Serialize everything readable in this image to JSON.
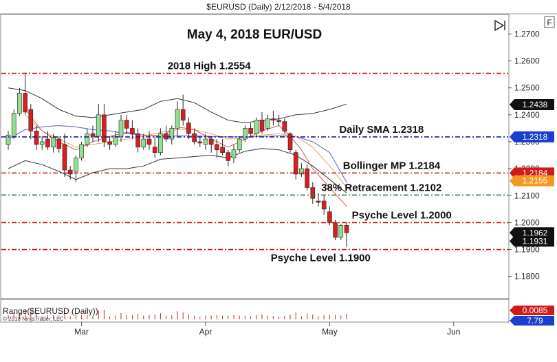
{
  "window": {
    "title": "$EURUSD (Daily)  2/12/2018 - 5/4/2018",
    "f_button": "F"
  },
  "chart_data": {
    "type": "candlestick",
    "title": "May 4, 2018 EUR/USD",
    "ylim": [
      1.172,
      1.277
    ],
    "y_ticks": [
      "1.2700",
      "1.2600",
      "1.2500",
      "1.2400",
      "1.2300",
      "1.2200",
      "1.2100",
      "1.2000",
      "1.1900",
      "1.1800"
    ],
    "x_ticks": [
      {
        "label": "Mar",
        "index": 13
      },
      {
        "label": "Apr",
        "index": 35
      },
      {
        "label": "May",
        "index": 57
      },
      {
        "label": "Jun",
        "index": 79
      }
    ],
    "candles": [
      {
        "o": 1.229,
        "h": 1.234,
        "l": 1.227,
        "c": 1.2325
      },
      {
        "o": 1.232,
        "h": 1.242,
        "l": 1.231,
        "c": 1.2405
      },
      {
        "o": 1.2405,
        "h": 1.25,
        "l": 1.2395,
        "c": 1.248
      },
      {
        "o": 1.248,
        "h": 1.2555,
        "l": 1.24,
        "c": 1.241
      },
      {
        "o": 1.242,
        "h": 1.244,
        "l": 1.231,
        "c": 1.234
      },
      {
        "o": 1.234,
        "h": 1.236,
        "l": 1.227,
        "c": 1.229
      },
      {
        "o": 1.229,
        "h": 1.232,
        "l": 1.227,
        "c": 1.23
      },
      {
        "o": 1.231,
        "h": 1.234,
        "l": 1.227,
        "c": 1.228
      },
      {
        "o": 1.228,
        "h": 1.233,
        "l": 1.226,
        "c": 1.2315
      },
      {
        "o": 1.231,
        "h": 1.232,
        "l": 1.226,
        "c": 1.2275
      },
      {
        "o": 1.229,
        "h": 1.233,
        "l": 1.217,
        "c": 1.2195
      },
      {
        "o": 1.2195,
        "h": 1.221,
        "l": 1.216,
        "c": 1.218
      },
      {
        "o": 1.219,
        "h": 1.225,
        "l": 1.215,
        "c": 1.224
      },
      {
        "o": 1.224,
        "h": 1.23,
        "l": 1.223,
        "c": 1.229
      },
      {
        "o": 1.229,
        "h": 1.235,
        "l": 1.228,
        "c": 1.233
      },
      {
        "o": 1.233,
        "h": 1.236,
        "l": 1.23,
        "c": 1.232
      },
      {
        "o": 1.232,
        "h": 1.244,
        "l": 1.23,
        "c": 1.24
      },
      {
        "o": 1.24,
        "h": 1.244,
        "l": 1.228,
        "c": 1.23
      },
      {
        "o": 1.23,
        "h": 1.232,
        "l": 1.227,
        "c": 1.229
      },
      {
        "o": 1.229,
        "h": 1.234,
        "l": 1.228,
        "c": 1.232
      },
      {
        "o": 1.232,
        "h": 1.24,
        "l": 1.23,
        "c": 1.238
      },
      {
        "o": 1.238,
        "h": 1.24,
        "l": 1.233,
        "c": 1.235
      },
      {
        "o": 1.235,
        "h": 1.238,
        "l": 1.231,
        "c": 1.233
      },
      {
        "o": 1.233,
        "h": 1.235,
        "l": 1.226,
        "c": 1.228
      },
      {
        "o": 1.228,
        "h": 1.233,
        "l": 1.227,
        "c": 1.231
      },
      {
        "o": 1.231,
        "h": 1.234,
        "l": 1.227,
        "c": 1.229
      },
      {
        "o": 1.228,
        "h": 1.232,
        "l": 1.224,
        "c": 1.226
      },
      {
        "o": 1.226,
        "h": 1.235,
        "l": 1.225,
        "c": 1.233
      },
      {
        "o": 1.233,
        "h": 1.236,
        "l": 1.23,
        "c": 1.231
      },
      {
        "o": 1.231,
        "h": 1.236,
        "l": 1.229,
        "c": 1.235
      },
      {
        "o": 1.235,
        "h": 1.245,
        "l": 1.232,
        "c": 1.242
      },
      {
        "o": 1.242,
        "h": 1.2475,
        "l": 1.236,
        "c": 1.238
      },
      {
        "o": 1.237,
        "h": 1.239,
        "l": 1.231,
        "c": 1.233
      },
      {
        "o": 1.233,
        "h": 1.235,
        "l": 1.229,
        "c": 1.23
      },
      {
        "o": 1.23,
        "h": 1.232,
        "l": 1.228,
        "c": 1.2295
      },
      {
        "o": 1.229,
        "h": 1.233,
        "l": 1.227,
        "c": 1.231
      },
      {
        "o": 1.231,
        "h": 1.232,
        "l": 1.226,
        "c": 1.229
      },
      {
        "o": 1.229,
        "h": 1.231,
        "l": 1.224,
        "c": 1.227
      },
      {
        "o": 1.228,
        "h": 1.231,
        "l": 1.225,
        "c": 1.226
      },
      {
        "o": 1.226,
        "h": 1.227,
        "l": 1.221,
        "c": 1.223
      },
      {
        "o": 1.224,
        "h": 1.229,
        "l": 1.222,
        "c": 1.227
      },
      {
        "o": 1.227,
        "h": 1.232,
        "l": 1.226,
        "c": 1.231
      },
      {
        "o": 1.231,
        "h": 1.236,
        "l": 1.23,
        "c": 1.235
      },
      {
        "o": 1.235,
        "h": 1.237,
        "l": 1.232,
        "c": 1.233
      },
      {
        "o": 1.233,
        "h": 1.239,
        "l": 1.232,
        "c": 1.238
      },
      {
        "o": 1.238,
        "h": 1.241,
        "l": 1.233,
        "c": 1.234
      },
      {
        "o": 1.235,
        "h": 1.24,
        "l": 1.234,
        "c": 1.2385
      },
      {
        "o": 1.2385,
        "h": 1.2415,
        "l": 1.236,
        "c": 1.238
      },
      {
        "o": 1.238,
        "h": 1.24,
        "l": 1.236,
        "c": 1.2375
      },
      {
        "o": 1.2375,
        "h": 1.2385,
        "l": 1.233,
        "c": 1.234
      },
      {
        "o": 1.233,
        "h": 1.2335,
        "l": 1.226,
        "c": 1.227
      },
      {
        "o": 1.226,
        "h": 1.227,
        "l": 1.216,
        "c": 1.218
      },
      {
        "o": 1.218,
        "h": 1.222,
        "l": 1.217,
        "c": 1.22
      },
      {
        "o": 1.22,
        "h": 1.2215,
        "l": 1.212,
        "c": 1.213
      },
      {
        "o": 1.213,
        "h": 1.215,
        "l": 1.207,
        "c": 1.209
      },
      {
        "o": 1.208,
        "h": 1.211,
        "l": 1.206,
        "c": 1.2075
      },
      {
        "o": 1.208,
        "h": 1.21,
        "l": 1.203,
        "c": 1.205
      },
      {
        "o": 1.204,
        "h": 1.206,
        "l": 1.199,
        "c": 1.2
      },
      {
        "o": 1.2,
        "h": 1.201,
        "l": 1.1935,
        "c": 1.1945
      },
      {
        "o": 1.1945,
        "h": 1.1995,
        "l": 1.1935,
        "c": 1.199
      },
      {
        "o": 1.199,
        "h": 1.2,
        "l": 1.191,
        "c": 1.1962
      }
    ],
    "bollinger_upper": [
      [
        0,
        1.25
      ],
      [
        3,
        1.249
      ],
      [
        6,
        1.246
      ],
      [
        9,
        1.242
      ],
      [
        12,
        1.2395
      ],
      [
        15,
        1.239
      ],
      [
        18,
        1.24
      ],
      [
        21,
        1.241
      ],
      [
        24,
        1.242
      ],
      [
        27,
        1.245
      ],
      [
        30,
        1.246
      ],
      [
        33,
        1.2445
      ],
      [
        36,
        1.241
      ],
      [
        39,
        1.238
      ],
      [
        42,
        1.237
      ],
      [
        45,
        1.238
      ],
      [
        48,
        1.2385
      ],
      [
        51,
        1.24
      ],
      [
        54,
        1.2405
      ],
      [
        57,
        1.242
      ],
      [
        60,
        1.244
      ]
    ],
    "bollinger_lower": [
      [
        0,
        1.22
      ],
      [
        3,
        1.223
      ],
      [
        6,
        1.2215
      ],
      [
        9,
        1.219
      ],
      [
        12,
        1.216
      ],
      [
        15,
        1.2185
      ],
      [
        18,
        1.22
      ],
      [
        21,
        1.22
      ],
      [
        24,
        1.221
      ],
      [
        27,
        1.2235
      ],
      [
        30,
        1.224
      ],
      [
        33,
        1.2245
      ],
      [
        36,
        1.225
      ],
      [
        39,
        1.224
      ],
      [
        42,
        1.2265
      ],
      [
        45,
        1.2275
      ],
      [
        48,
        1.227
      ],
      [
        51,
        1.225
      ],
      [
        54,
        1.221
      ],
      [
        57,
        1.216
      ],
      [
        60,
        1.211
      ]
    ],
    "sma_50": [
      [
        0,
        1.231
      ],
      [
        3,
        1.2345
      ],
      [
        6,
        1.2355
      ],
      [
        9,
        1.236
      ],
      [
        12,
        1.2355
      ],
      [
        15,
        1.2345
      ],
      [
        18,
        1.234
      ],
      [
        21,
        1.233
      ],
      [
        24,
        1.2325
      ],
      [
        27,
        1.2322
      ],
      [
        30,
        1.2322
      ],
      [
        33,
        1.2322
      ],
      [
        36,
        1.232
      ],
      [
        39,
        1.2318
      ],
      [
        42,
        1.2318
      ],
      [
        45,
        1.232
      ],
      [
        48,
        1.2322
      ],
      [
        51,
        1.232
      ],
      [
        54,
        1.23
      ],
      [
        57,
        1.226
      ],
      [
        60,
        1.215
      ]
    ],
    "bollinger_mid": [
      [
        3,
        1.24
      ],
      [
        6,
        1.234
      ],
      [
        9,
        1.231
      ],
      [
        12,
        1.228
      ],
      [
        15,
        1.229
      ],
      [
        18,
        1.23
      ],
      [
        21,
        1.231
      ],
      [
        24,
        1.232
      ],
      [
        27,
        1.2335
      ],
      [
        30,
        1.2345
      ],
      [
        33,
        1.2345
      ],
      [
        36,
        1.233
      ],
      [
        39,
        1.231
      ],
      [
        42,
        1.2315
      ],
      [
        45,
        1.2325
      ],
      [
        48,
        1.233
      ],
      [
        51,
        1.232
      ],
      [
        54,
        1.228
      ],
      [
        57,
        1.221
      ],
      [
        60,
        1.213
      ]
    ],
    "ema_fast": [
      [
        3,
        1.242
      ],
      [
        6,
        1.234
      ],
      [
        9,
        1.23
      ],
      [
        12,
        1.227
      ],
      [
        15,
        1.23
      ],
      [
        18,
        1.232
      ],
      [
        21,
        1.2335
      ],
      [
        24,
        1.2325
      ],
      [
        27,
        1.232
      ],
      [
        30,
        1.2355
      ],
      [
        33,
        1.2345
      ],
      [
        36,
        1.231
      ],
      [
        39,
        1.228
      ],
      [
        42,
        1.231
      ],
      [
        45,
        1.234
      ],
      [
        48,
        1.236
      ],
      [
        50,
        1.232
      ],
      [
        52,
        1.227
      ],
      [
        54,
        1.22
      ],
      [
        57,
        1.213
      ],
      [
        60,
        1.206
      ]
    ],
    "levels": [
      {
        "value": 1.2554,
        "label": "2018 High 1.2554",
        "color": "#cc1111",
        "dash": "7,3,2,3",
        "text_x": 0.41,
        "text_above": true
      },
      {
        "value": 1.2318,
        "label": "Daily SMA 1.2318",
        "color": "#1a1a99",
        "dash": "7,3,2,3",
        "text_x": 0.75,
        "text_above": true
      },
      {
        "value": 1.2184,
        "label": "Bollinger MP 1.2184",
        "color": "#cc1111",
        "dash": "7,3,2,3",
        "text_x": 0.77,
        "text_above": true
      },
      {
        "value": 1.2102,
        "label": "38% Retracement 1.2102",
        "color": "#2e7a4a",
        "dash": "7,3,2,3",
        "text_x": 0.75,
        "text_above": true
      },
      {
        "value": 1.2,
        "label": "Psyche Level 1.2000",
        "color": "#cc1111",
        "dash": "7,3,2,3",
        "text_x": 0.79,
        "text_above": true
      },
      {
        "value": 1.19,
        "label": "Psyche Level 1.1900",
        "color": "#cc1111",
        "dash": "7,3,2,3",
        "text_x": 0.63,
        "text_above": false
      }
    ],
    "price_tags": [
      {
        "value": 1.2438,
        "label": "1.2438",
        "color": "#111111",
        "text_color": "#ffffff"
      },
      {
        "value": 1.2318,
        "label": "1.2318",
        "color": "#1a3fcf",
        "text_color": "#ffffff"
      },
      {
        "value": 1.2184,
        "label": "1.2184",
        "color": "#d11a1a",
        "text_color": "#ffffff"
      },
      {
        "value": 1.2155,
        "label": "1.2155",
        "color": "#f39a1e",
        "text_color": "#111111"
      },
      {
        "value": 1.1962,
        "label": "1.1962",
        "color": "#111111",
        "text_color": "#ffffff"
      },
      {
        "value": 1.1931,
        "label": "1.1931",
        "color": "#111111",
        "text_color": "#ffffff"
      }
    ],
    "range_panel": {
      "label": "Range($EURUSD (Daily))",
      "copyright": "© 2018 NinjaTrader, LLC",
      "tags": [
        {
          "label": "0.0085",
          "color": "#d11a1a"
        },
        {
          "label": "7.79",
          "color": "#1a3fcf"
        }
      ]
    },
    "colors": {
      "up": "#8fe08f",
      "down": "#d61f1f",
      "wick": "#222222",
      "upper_band": "#333333",
      "lower_band": "#333333",
      "sma": "#5a5ac8",
      "mid": "#e8a060",
      "ema": "#d8574e"
    }
  }
}
